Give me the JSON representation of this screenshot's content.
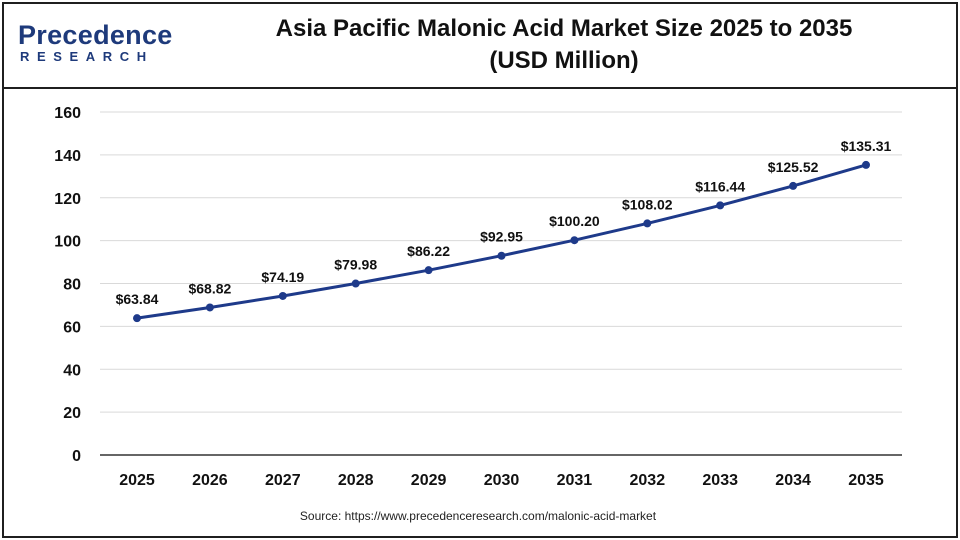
{
  "logo": {
    "brand": "Precedence",
    "sub": "RESEARCH"
  },
  "title": {
    "line1": "Asia Pacific Malonic Acid Market Size 2025 to 2035",
    "line2": "(USD Million)"
  },
  "source": "Source: https://www.precedenceresearch.com/malonic-acid-market",
  "colors": {
    "line": "#1e3a8a",
    "marker": "#1e3a8a",
    "grid": "#d9d9d9",
    "axis": "#333333",
    "logo": "#1e3a7b"
  },
  "chart_data": {
    "type": "line",
    "title": "Asia Pacific Malonic Acid Market Size 2025 to 2035 (USD Million)",
    "categories": [
      "2025",
      "2026",
      "2027",
      "2028",
      "2029",
      "2030",
      "2031",
      "2032",
      "2033",
      "2034",
      "2035"
    ],
    "series": [
      {
        "values": [
          63.84,
          68.82,
          74.19,
          79.98,
          86.22,
          92.95,
          100.2,
          108.02,
          116.44,
          125.52,
          135.31
        ],
        "labels": [
          "$63.84",
          "$68.82",
          "$74.19",
          "$79.98",
          "$86.22",
          "$92.95",
          "$100.20",
          "$108.02",
          "$116.44",
          "$125.52",
          "$135.31"
        ]
      }
    ],
    "y_ticks": [
      "0",
      "20",
      "40",
      "60",
      "80",
      "100",
      "120",
      "140",
      "160"
    ],
    "ylim": [
      0,
      160
    ],
    "xlabel": "",
    "ylabel": "",
    "grid": true,
    "legend": false
  }
}
